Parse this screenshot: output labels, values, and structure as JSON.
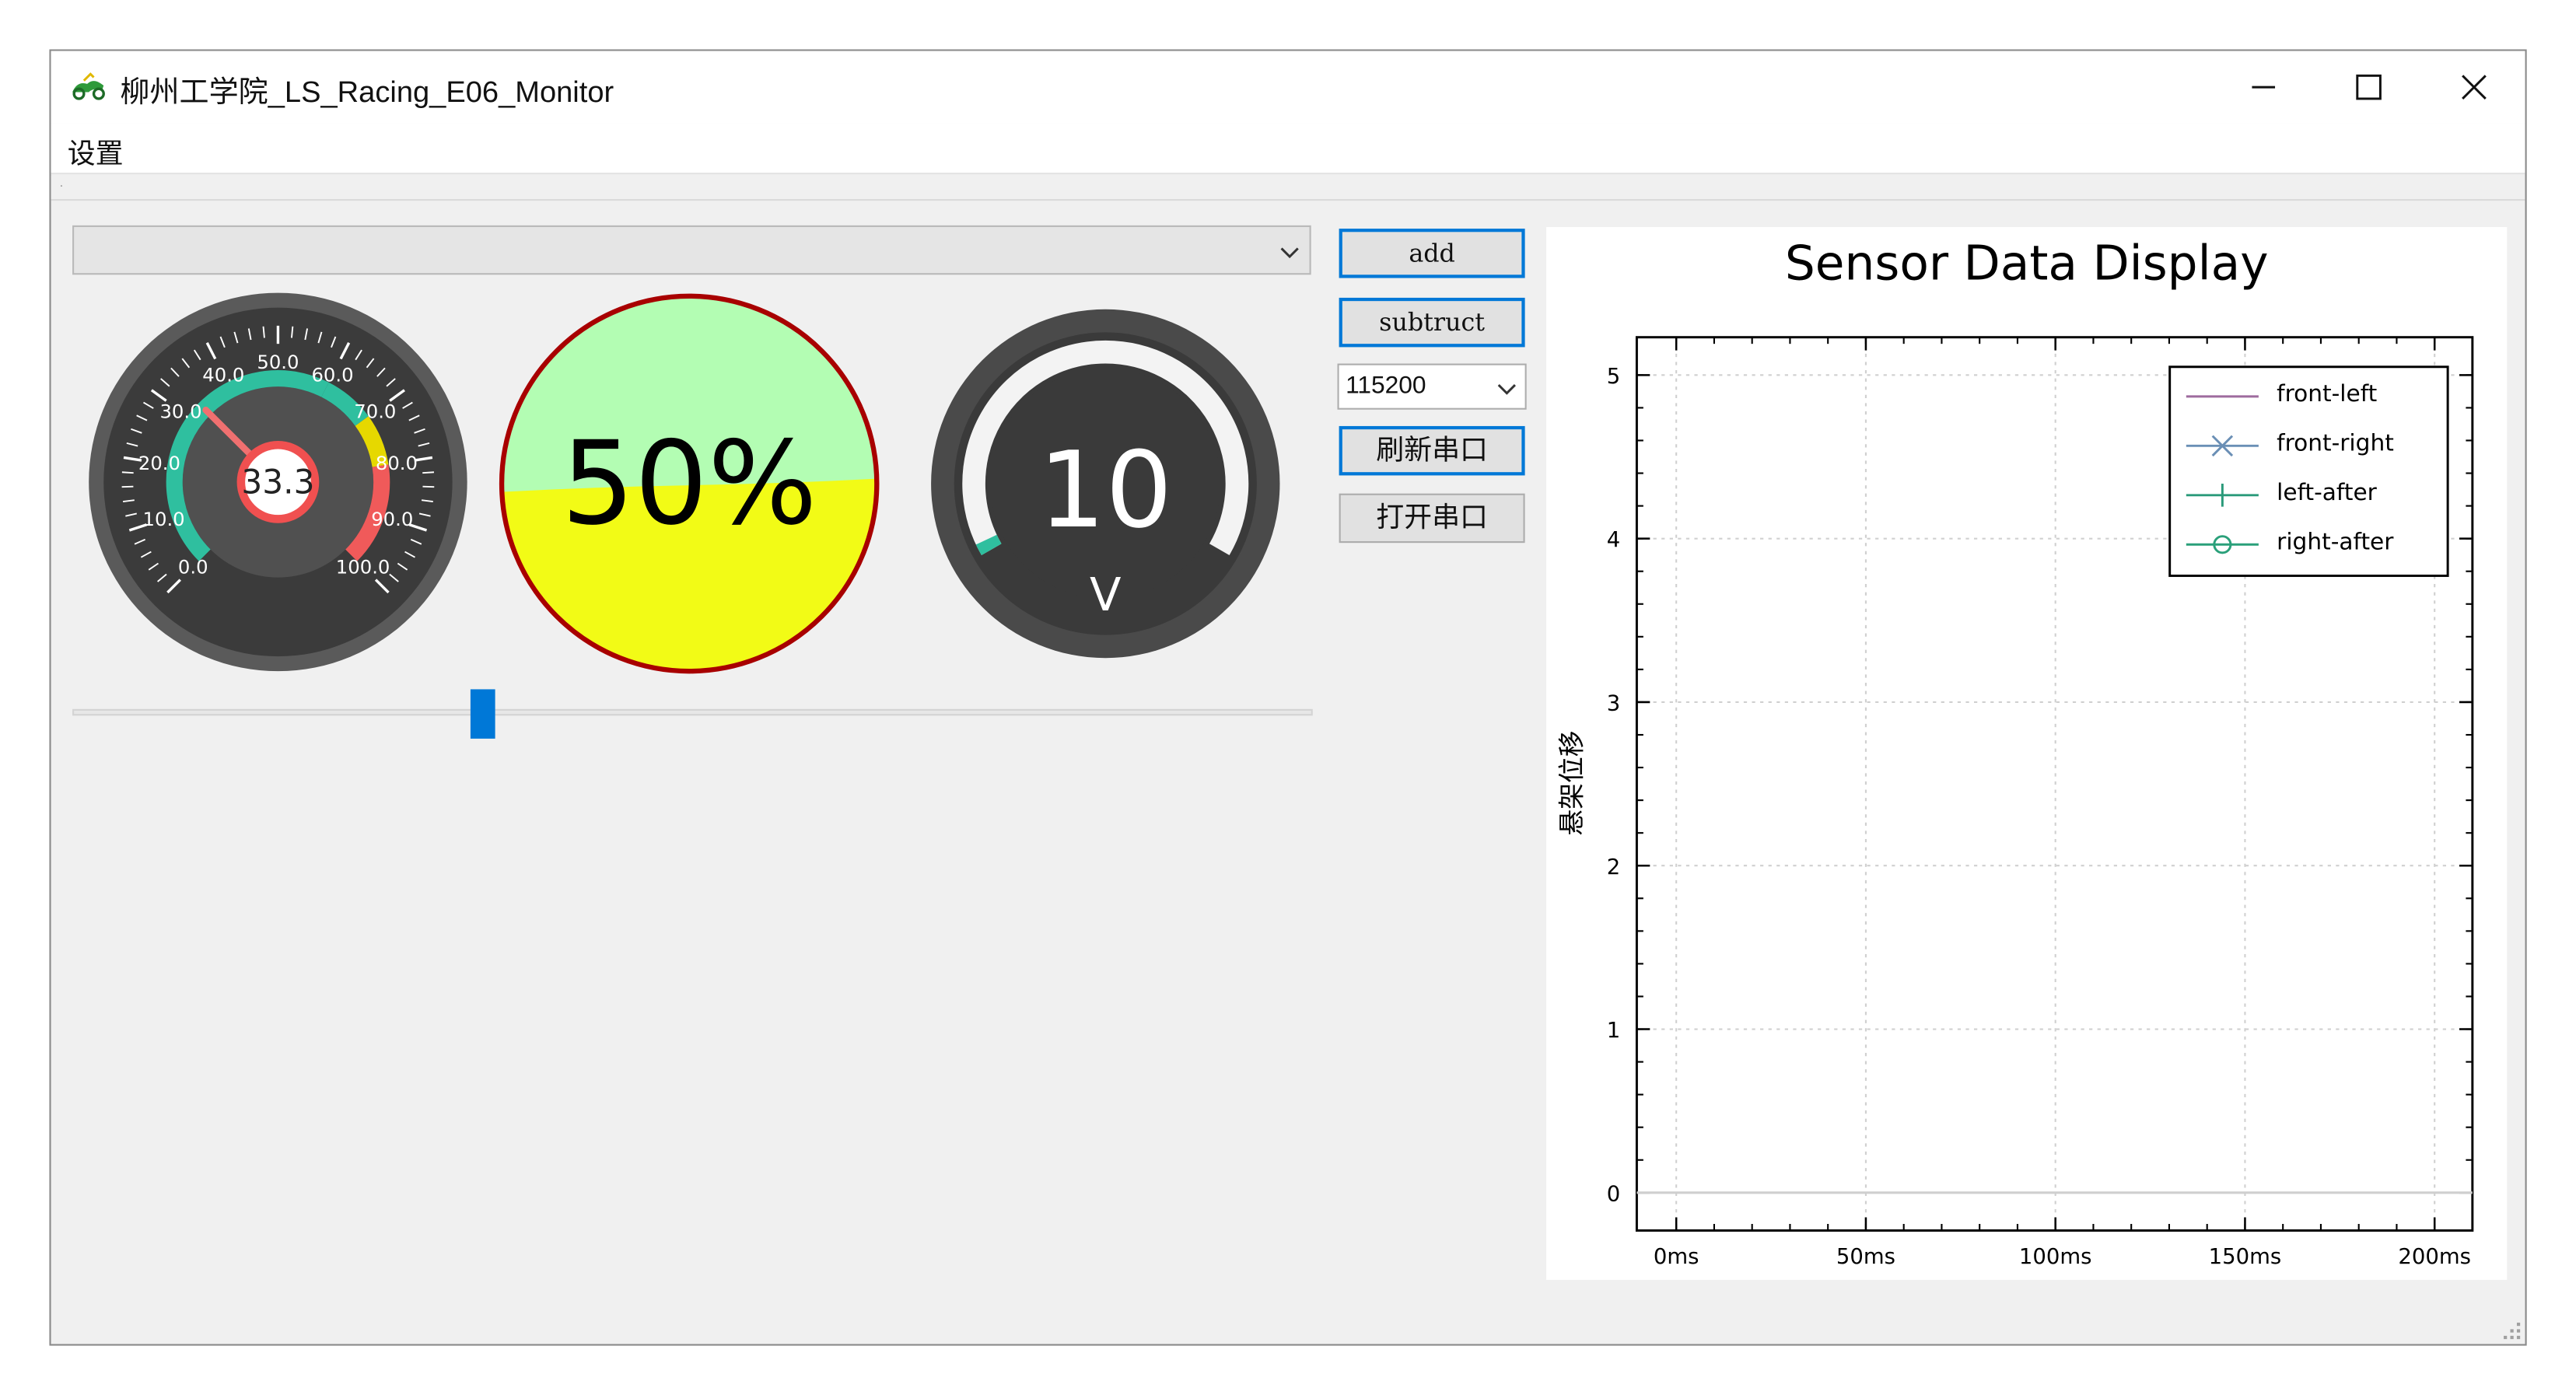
{
  "window": {
    "title": "柳州工学院_LS_Racing_E06_Monitor",
    "menu": [
      "设置"
    ],
    "controls": [
      "minimize",
      "maximize",
      "close"
    ]
  },
  "left_panel": {
    "combo_value": "",
    "speed_gauge": {
      "value_label": "33.3",
      "value": 33.3,
      "min": 0,
      "max": 100,
      "tick_labels": [
        "0.0",
        "10.0",
        "20.0",
        "30.0",
        "40.0",
        "50.0",
        "60.0",
        "70.0",
        "80.0",
        "90.0",
        "100.0"
      ],
      "colors": {
        "green": "#2fbf9f",
        "yellow": "#e6d800",
        "red": "#f05a5a",
        "needle": "#f07070"
      }
    },
    "progress_ball": {
      "label": "50%",
      "fraction": 0.5,
      "colors": {
        "top": "#b3fdb3",
        "bottom": "#f2fb16",
        "ring": "#a80000"
      }
    },
    "voltage_gauge": {
      "value": "10",
      "unit": "V",
      "fraction": 0.02
    },
    "slider": {
      "fraction": 0.33
    }
  },
  "buttons": {
    "add": "add",
    "subtract": "subtruct",
    "baud_rate": "115200",
    "refresh_port": "刷新串口",
    "open_port": "打开串口"
  },
  "chart_data": {
    "type": "line",
    "title": "Sensor Data Display",
    "xlabel": "",
    "ylabel": "悬架位移",
    "x_ticks": [
      "0ms",
      "50ms",
      "100ms",
      "150ms",
      "200ms"
    ],
    "y_ticks": [
      "0",
      "1",
      "2",
      "3",
      "4",
      "5"
    ],
    "xlim": [
      0,
      200
    ],
    "ylim": [
      0,
      5
    ],
    "grid": true,
    "legend_position": "top-right",
    "series": [
      {
        "name": "front-left",
        "color": "#9e6b9e",
        "marker": "none",
        "values": []
      },
      {
        "name": "front-right",
        "color": "#6a8fb5",
        "marker": "x",
        "values": []
      },
      {
        "name": "left-after",
        "color": "#2a9a7a",
        "marker": "+",
        "values": []
      },
      {
        "name": "right-after",
        "color": "#2aa07a",
        "marker": "o",
        "values": []
      }
    ],
    "baseline": {
      "y": 0,
      "color": "#cfcfcf"
    }
  }
}
